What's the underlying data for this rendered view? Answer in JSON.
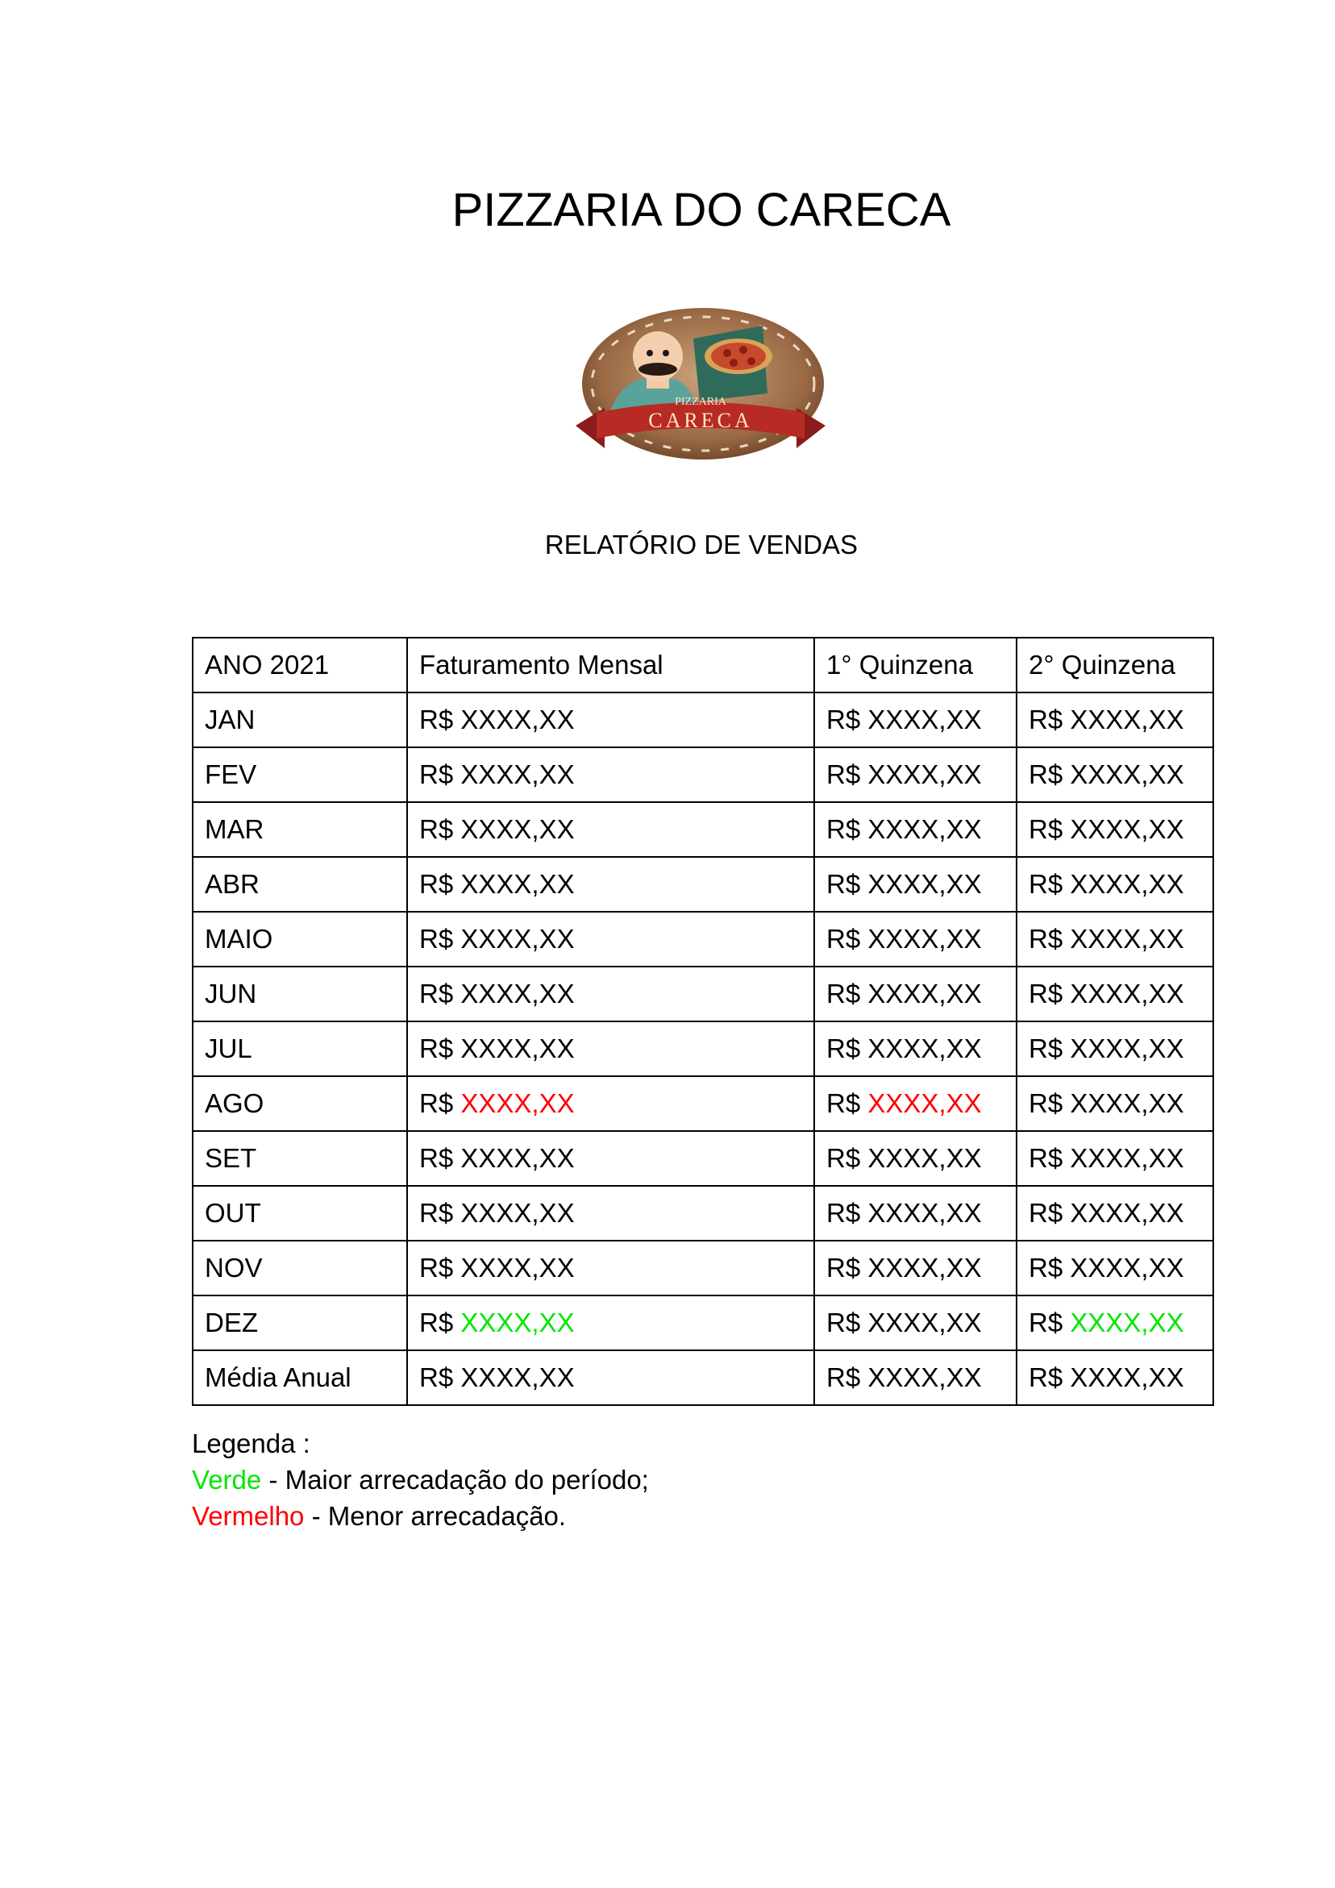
{
  "document": {
    "title": "PIZZARIA DO CARECA",
    "subtitle": "RELATÓRIO DE VENDAS"
  },
  "logo": {
    "text_top": "PIZZARIA",
    "text_main": "CARECA"
  },
  "colors": {
    "highest": "#00e600",
    "lowest": "#ff0000"
  },
  "table": {
    "headers": [
      "ANO 2021",
      "Faturamento Mensal",
      "1° Quinzena",
      "2° Quinzena"
    ],
    "currency": "R$",
    "rows": [
      {
        "label": "JAN",
        "cells": [
          {
            "value": "XXXX,XX",
            "mark": ""
          },
          {
            "value": "XXXX,XX",
            "mark": ""
          },
          {
            "value": "XXXX,XX",
            "mark": ""
          }
        ]
      },
      {
        "label": "FEV",
        "cells": [
          {
            "value": "XXXX,XX",
            "mark": ""
          },
          {
            "value": "XXXX,XX",
            "mark": ""
          },
          {
            "value": "XXXX,XX",
            "mark": ""
          }
        ]
      },
      {
        "label": "MAR",
        "cells": [
          {
            "value": "XXXX,XX",
            "mark": ""
          },
          {
            "value": "XXXX,XX",
            "mark": ""
          },
          {
            "value": "XXXX,XX",
            "mark": ""
          }
        ]
      },
      {
        "label": "ABR",
        "cells": [
          {
            "value": "XXXX,XX",
            "mark": ""
          },
          {
            "value": "XXXX,XX",
            "mark": ""
          },
          {
            "value": "XXXX,XX",
            "mark": ""
          }
        ]
      },
      {
        "label": "MAIO",
        "cells": [
          {
            "value": "XXXX,XX",
            "mark": ""
          },
          {
            "value": "XXXX,XX",
            "mark": ""
          },
          {
            "value": "XXXX,XX",
            "mark": ""
          }
        ]
      },
      {
        "label": "JUN",
        "cells": [
          {
            "value": "XXXX,XX",
            "mark": ""
          },
          {
            "value": "XXXX,XX",
            "mark": ""
          },
          {
            "value": "XXXX,XX",
            "mark": ""
          }
        ]
      },
      {
        "label": "JUL",
        "cells": [
          {
            "value": "XXXX,XX",
            "mark": ""
          },
          {
            "value": "XXXX,XX",
            "mark": ""
          },
          {
            "value": "XXXX,XX",
            "mark": ""
          }
        ]
      },
      {
        "label": "AGO",
        "cells": [
          {
            "value": "XXXX,XX",
            "mark": "lowest"
          },
          {
            "value": "XXXX,XX",
            "mark": "lowest"
          },
          {
            "value": "XXXX,XX",
            "mark": ""
          }
        ]
      },
      {
        "label": "SET",
        "cells": [
          {
            "value": "XXXX,XX",
            "mark": ""
          },
          {
            "value": "XXXX,XX",
            "mark": ""
          },
          {
            "value": "XXXX,XX",
            "mark": ""
          }
        ]
      },
      {
        "label": "OUT",
        "cells": [
          {
            "value": "XXXX,XX",
            "mark": ""
          },
          {
            "value": "XXXX,XX",
            "mark": ""
          },
          {
            "value": "XXXX,XX",
            "mark": ""
          }
        ]
      },
      {
        "label": "NOV",
        "cells": [
          {
            "value": "XXXX,XX",
            "mark": ""
          },
          {
            "value": "XXXX,XX",
            "mark": ""
          },
          {
            "value": "XXXX,XX",
            "mark": ""
          }
        ]
      },
      {
        "label": "DEZ",
        "cells": [
          {
            "value": "XXXX,XX",
            "mark": "highest"
          },
          {
            "value": "XXXX,XX",
            "mark": ""
          },
          {
            "value": "XXXX,XX",
            "mark": "highest"
          }
        ]
      },
      {
        "label": "Média Anual",
        "cells": [
          {
            "value": "XXXX,XX",
            "mark": ""
          },
          {
            "value": "XXXX,XX",
            "mark": ""
          },
          {
            "value": "XXXX,XX",
            "mark": ""
          }
        ]
      }
    ]
  },
  "legend": {
    "title": "Legenda :",
    "green_word": "Verde",
    "green_text": " - Maior arrecadação do período;",
    "red_word": "Vermelho",
    "red_text": " - Menor arrecadação."
  }
}
